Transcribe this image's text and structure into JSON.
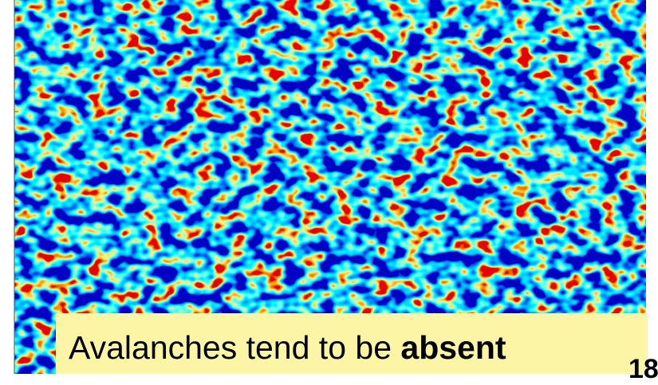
{
  "caption": {
    "text": "Avalanches tend to be",
    "emphasis": "absent"
  },
  "slide_number": "18"
}
